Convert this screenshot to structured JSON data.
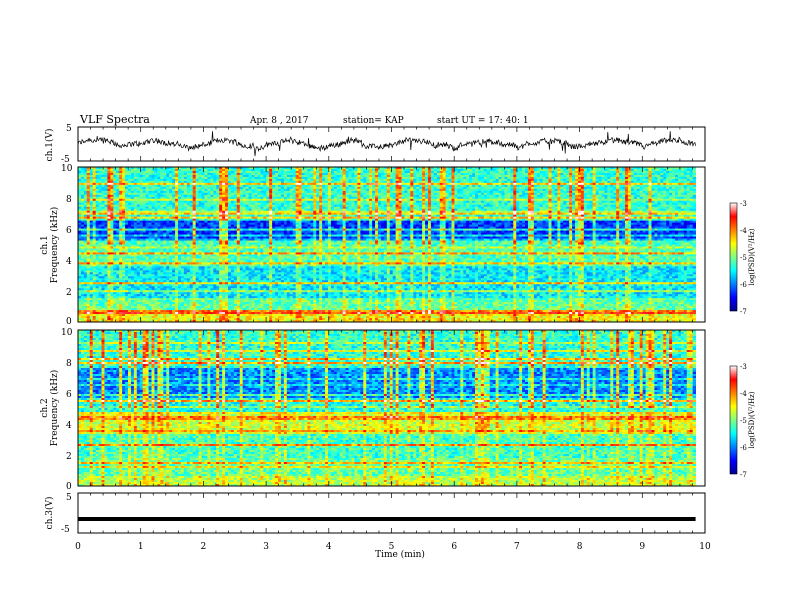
{
  "header": {
    "title": "VLF Spectra",
    "date": "Apr. 8  , 2017",
    "station": "station= KAP",
    "start": "start  UT  =   17: 40: 1"
  },
  "chart_data": [
    {
      "id": "ch1-voltage",
      "type": "line",
      "ylabel": "ch.1(V)",
      "ylim": [
        -5,
        5
      ],
      "yticks": [
        "5",
        "-5"
      ],
      "xlim": [
        0,
        10
      ],
      "trace_extent_min": 9.85,
      "color": "#000000",
      "description_level": "noisy waveform around 0 V between about -2.5 and 2.5 V"
    },
    {
      "id": "ch1-spectrogram",
      "type": "heatmap",
      "ylabel_top": "ch.1",
      "ylabel": "Frequency (kHz)",
      "ylim": [
        0,
        10
      ],
      "yticks": [
        "0",
        "2",
        "4",
        "6",
        "8",
        "10"
      ],
      "xlim": [
        0,
        10
      ],
      "data_extent_min": 9.85,
      "colorbar": {
        "label": "log(PSD)(V²/Hz)",
        "range": [
          -7,
          -3
        ],
        "ticks": [
          "-3",
          "-4",
          "-5",
          "-6",
          "-7"
        ],
        "colormap": [
          "#00008f",
          "#0000ff",
          "#0080ff",
          "#00ffff",
          "#80ff80",
          "#ffff00",
          "#ff8000",
          "#ff0000",
          "#ffffff"
        ]
      }
    },
    {
      "id": "ch2-spectrogram",
      "type": "heatmap",
      "ylabel_top": "ch.2",
      "ylabel": "Frequency (kHz)",
      "ylim": [
        0,
        10
      ],
      "yticks": [
        "0",
        "2",
        "4",
        "6",
        "8",
        "10"
      ],
      "xlim": [
        0,
        10
      ],
      "data_extent_min": 9.85,
      "colorbar": {
        "label": "log(PSD)(V²/Hz)",
        "range": [
          -7,
          -3
        ],
        "ticks": [
          "-3",
          "-4",
          "-5",
          "-6",
          "-7"
        ],
        "colormap": [
          "#00008f",
          "#0000ff",
          "#0080ff",
          "#00ffff",
          "#80ff80",
          "#ffff00",
          "#ff8000",
          "#ff0000",
          "#ffffff"
        ]
      }
    },
    {
      "id": "ch3-voltage",
      "type": "line",
      "ylabel": "ch.3(V)",
      "ylim": [
        -5,
        5
      ],
      "yticks": [
        "5",
        "-5"
      ],
      "xlim": [
        0,
        10
      ],
      "trace_extent_min": 9.85,
      "values_constant": -1.5,
      "color": "#000000"
    }
  ],
  "xaxis": {
    "label": "Time (min)",
    "ticks": [
      "0",
      "1",
      "2",
      "3",
      "4",
      "5",
      "6",
      "7",
      "8",
      "9",
      "10"
    ]
  }
}
